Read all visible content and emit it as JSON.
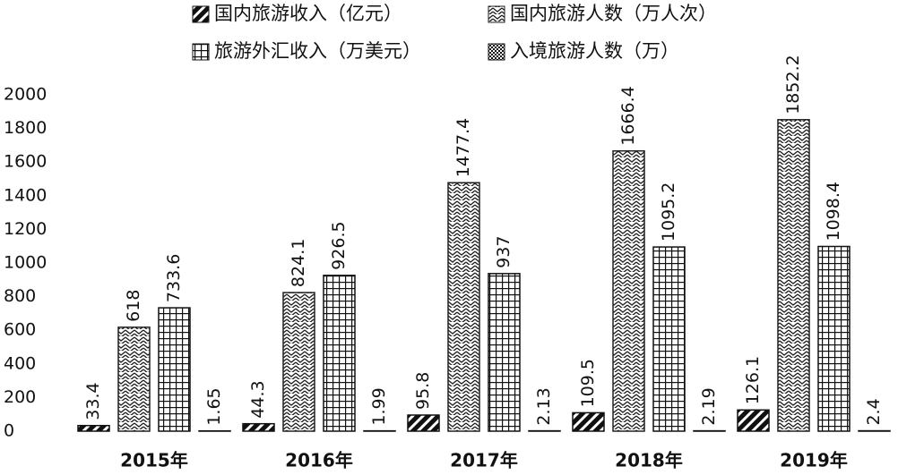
{
  "chart_data": {
    "type": "bar",
    "categories": [
      "2015年",
      "2016年",
      "2017年",
      "2018年",
      "2019年"
    ],
    "series": [
      {
        "name": "国内旅游收入（亿元）",
        "color": "#111111",
        "values": [
          33.4,
          44.3,
          95.8,
          109.5,
          126.1
        ]
      },
      {
        "name": "国内旅游人数（万人次）",
        "color": "#222222",
        "values": [
          618,
          824.1,
          1477.4,
          1666.4,
          1852.2
        ]
      },
      {
        "name": "旅游外汇收入（万美元）",
        "color": "#111111",
        "values": [
          733.6,
          926.5,
          937,
          1095.2,
          1098.4
        ]
      },
      {
        "name": "入境旅游人数（万）",
        "color": "#111111",
        "values": [
          1.65,
          1.99,
          2.13,
          2.19,
          2.4
        ]
      }
    ],
    "ylim": [
      0,
      2000
    ],
    "yticks": [
      0,
      200,
      400,
      600,
      800,
      1000,
      1200,
      1400,
      1600,
      1800,
      2000
    ],
    "grid": false,
    "legend": "top"
  }
}
